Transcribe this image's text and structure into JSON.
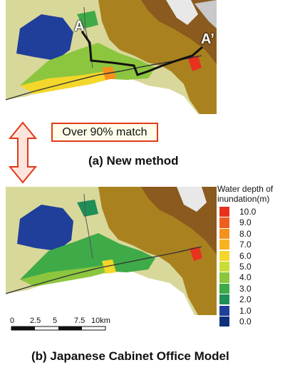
{
  "maps": {
    "top": {
      "caption": "(a) New method",
      "labels": {
        "start": "A",
        "end": "A’"
      }
    },
    "bottom": {
      "caption": "(b) Japanese Cabinet Office Model"
    }
  },
  "match_callout": "Over 90% match",
  "legend": {
    "title": "Water depth of inundation(m)",
    "items": [
      {
        "label": "10.0",
        "color": "#e8321e"
      },
      {
        "label": "9.0",
        "color": "#ee5f1f"
      },
      {
        "label": "8.0",
        "color": "#f5901d"
      },
      {
        "label": "7.0",
        "color": "#f7b320"
      },
      {
        "label": "6.0",
        "color": "#f3d72a"
      },
      {
        "label": "5.0",
        "color": "#c8dd36"
      },
      {
        "label": "4.0",
        "color": "#8cc63e"
      },
      {
        "label": "3.0",
        "color": "#3faa48"
      },
      {
        "label": "2.0",
        "color": "#1f8f56"
      },
      {
        "label": "1.0",
        "color": "#1f3f9a"
      },
      {
        "label": "0.0",
        "color": "#0f2f7a"
      }
    ]
  },
  "scale_bar": {
    "ticks": [
      "0",
      "2.5",
      "5",
      "7.5",
      "10km"
    ]
  },
  "colors": {
    "terrain_low": "#d8d89a",
    "terrain_high": "#8a5a1e",
    "callout_border": "#e03a1a",
    "arrow": "#e03a1a"
  }
}
